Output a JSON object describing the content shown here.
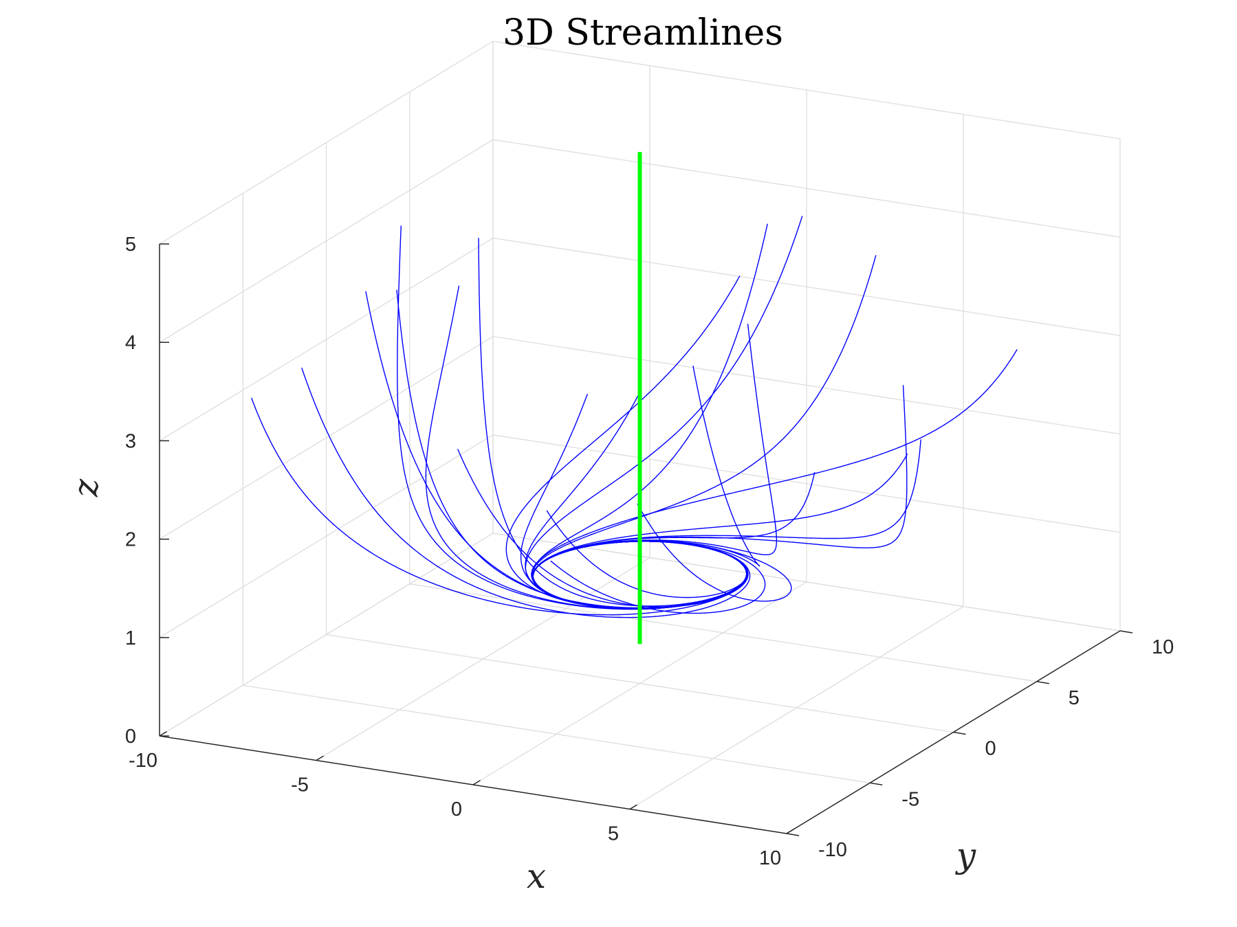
{
  "chart_data": {
    "type": "line",
    "projection": "3d",
    "title": "3D Streamlines",
    "xlabel": "x",
    "ylabel": "y",
    "zlabel": "z",
    "xlim": [
      -10,
      10
    ],
    "ylim": [
      -10,
      10
    ],
    "zlim": [
      0,
      5
    ],
    "x_ticks": [
      "-10",
      "-5",
      "0",
      "5",
      "10"
    ],
    "y_ticks": [
      "-10",
      "-5",
      "0",
      "5",
      "10"
    ],
    "z_ticks": [
      "0",
      "1",
      "2",
      "3",
      "4",
      "5"
    ],
    "grid": true,
    "colors": {
      "streamlines": "#0000ff",
      "axis_line": "#00ff00"
    },
    "series": [
      {
        "kind": "streamlines",
        "description_free": true,
        "field_center": [
          0,
          0
        ],
        "vortex_radius": 3,
        "start_radius_min": 5,
        "start_radius_max": 11,
        "start_z_max": 4.3,
        "min_z": 1.1,
        "count": 24
      },
      {
        "kind": "vertical_line",
        "x": 0,
        "y": 0,
        "z": [
          0.4,
          5.4
        ]
      }
    ]
  }
}
